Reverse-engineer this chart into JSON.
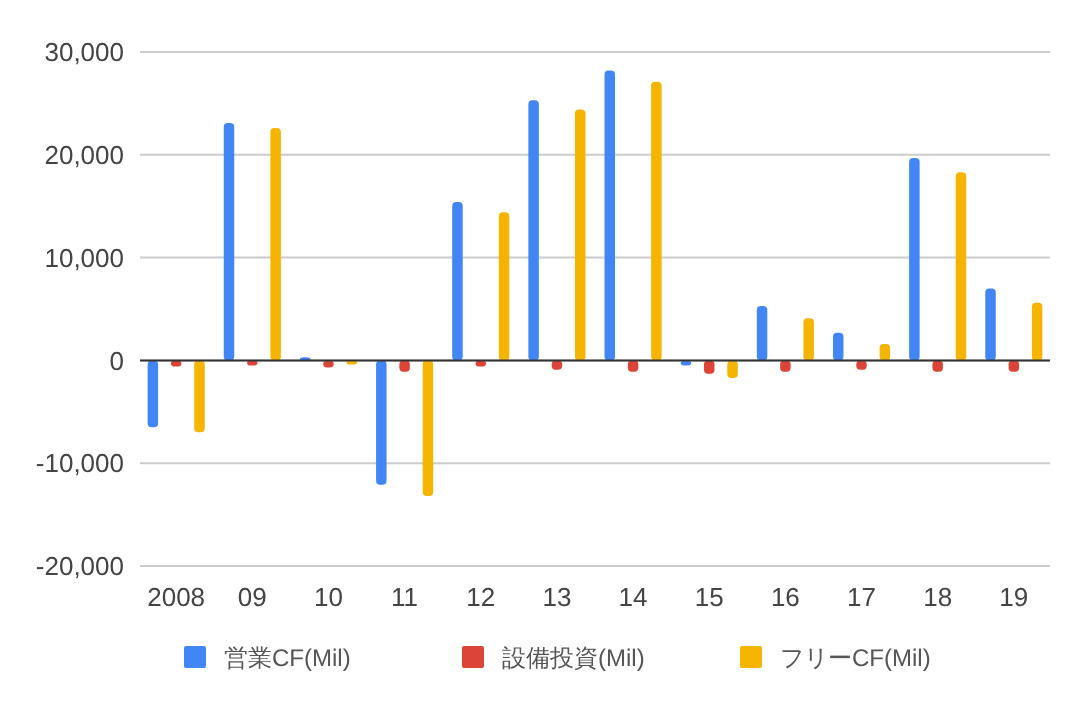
{
  "chart_data": {
    "type": "bar",
    "categories": [
      "2008",
      "09",
      "10",
      "11",
      "12",
      "13",
      "14",
      "15",
      "16",
      "17",
      "18",
      "19"
    ],
    "series": [
      {
        "name": "営業CF(Mil)",
        "color": "#4285f4",
        "values": [
          -6500,
          23100,
          300,
          -12100,
          15400,
          25300,
          28200,
          -500,
          5300,
          2700,
          19700,
          7000
        ]
      },
      {
        "name": "設備投資(Mil)",
        "color": "#db4437",
        "values": [
          -600,
          -500,
          -700,
          -1100,
          -600,
          -900,
          -1100,
          -1300,
          -1100,
          -900,
          -1100,
          -1100
        ]
      },
      {
        "name": "フリーCF(Mil)",
        "color": "#f4b400",
        "values": [
          -7000,
          22600,
          -400,
          -13200,
          14400,
          24400,
          27100,
          -1700,
          4100,
          1600,
          18300,
          5600
        ]
      }
    ],
    "ylim": [
      -20000,
      30000
    ],
    "yticks": [
      {
        "value": -20000,
        "label": "-20,000"
      },
      {
        "value": -10000,
        "label": "-10,000"
      },
      {
        "value": 0,
        "label": "0"
      },
      {
        "value": 10000,
        "label": "10,000"
      },
      {
        "value": 20000,
        "label": "20,000"
      },
      {
        "value": 30000,
        "label": "30,000"
      }
    ],
    "grid": "y",
    "legend": "bottom"
  }
}
